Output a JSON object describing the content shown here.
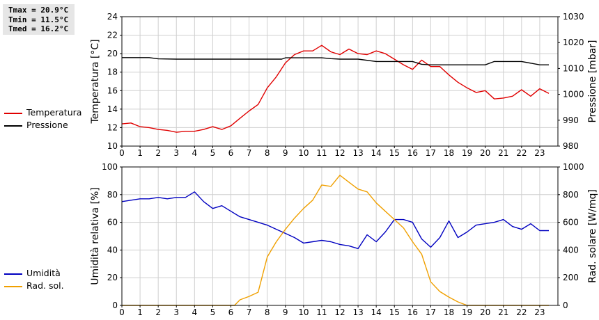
{
  "stats": {
    "tmax": "Tmax = 20.9°C",
    "tmin": "Tmin = 11.5°C",
    "tmed": "Tmed = 16.2°C"
  },
  "legend_top": [
    {
      "label": "Temperatura",
      "color": "#e00000"
    },
    {
      "label": "Pressione",
      "color": "#000000"
    }
  ],
  "legend_bottom": [
    {
      "label": "Umidità",
      "color": "#0000c0"
    },
    {
      "label": "Rad. sol.",
      "color": "#f0a000"
    }
  ],
  "chart_data": [
    {
      "type": "line",
      "ylabel_left": "Temperatura [°C]",
      "ylabel_right": "Pressione [mbar]",
      "ylim_left": [
        10,
        24
      ],
      "ylim_right": [
        980,
        1030
      ],
      "yticks_left": [
        10,
        12,
        14,
        16,
        18,
        20,
        22,
        24
      ],
      "yticks_right": [
        980,
        990,
        1000,
        1010,
        1020,
        1030
      ],
      "xlim": [
        0,
        24
      ],
      "xticks": [
        0,
        1,
        2,
        3,
        4,
        5,
        6,
        7,
        8,
        9,
        10,
        11,
        12,
        13,
        14,
        15,
        16,
        17,
        18,
        19,
        20,
        21,
        22,
        23
      ],
      "series": [
        {
          "name": "Temperatura",
          "axis": "left",
          "color": "#e00000",
          "x": [
            0,
            0.5,
            1,
            1.5,
            2,
            2.5,
            3,
            3.5,
            4,
            4.5,
            5,
            5.5,
            6,
            6.5,
            7,
            7.5,
            8,
            8.5,
            9,
            9.5,
            10,
            10.5,
            11,
            11.5,
            12,
            12.5,
            13,
            13.5,
            14,
            14.5,
            15,
            15.5,
            16,
            16.5,
            17,
            17.5,
            18,
            18.5,
            19,
            19.5,
            20,
            20.5,
            21,
            21.5,
            22,
            22.5,
            23,
            23.5
          ],
          "values": [
            12.4,
            12.5,
            12.1,
            12.0,
            11.8,
            11.7,
            11.5,
            11.6,
            11.6,
            11.8,
            12.1,
            11.8,
            12.2,
            13.0,
            13.8,
            14.5,
            16.3,
            17.5,
            19.0,
            19.9,
            20.3,
            20.3,
            20.9,
            20.2,
            19.9,
            20.5,
            20.0,
            19.9,
            20.3,
            20.0,
            19.4,
            18.8,
            18.3,
            19.3,
            18.6,
            18.6,
            17.7,
            16.9,
            16.3,
            15.8,
            16.0,
            15.1,
            15.2,
            15.4,
            16.1,
            15.4,
            16.2,
            15.7
          ]
        },
        {
          "name": "Pressione",
          "axis": "right",
          "color": "#000000",
          "x": [
            0,
            1.5,
            2,
            3,
            4,
            5,
            6,
            7,
            8,
            8.8,
            9,
            10,
            11,
            11.5,
            12,
            13,
            14,
            15,
            16,
            16.5,
            17,
            18,
            19,
            20,
            20.5,
            21,
            22,
            23,
            23.5
          ],
          "values": [
            1014.2,
            1014.2,
            1013.7,
            1013.6,
            1013.6,
            1013.6,
            1013.6,
            1013.6,
            1013.6,
            1013.6,
            1014.1,
            1014.1,
            1014.1,
            1013.8,
            1013.6,
            1013.6,
            1012.7,
            1012.7,
            1012.7,
            1011.6,
            1011.4,
            1011.4,
            1011.4,
            1011.4,
            1012.7,
            1012.7,
            1012.7,
            1011.4,
            1011.4
          ]
        }
      ]
    },
    {
      "type": "line",
      "ylabel_left": "Umidità relativa [%]",
      "ylabel_right": "Rad. solare [W/mq]",
      "ylim_left": [
        0,
        100
      ],
      "ylim_right": [
        0,
        1000
      ],
      "yticks_left": [
        0,
        20,
        40,
        60,
        80,
        100
      ],
      "yticks_right": [
        0,
        200,
        400,
        600,
        800,
        1000
      ],
      "xlim": [
        0,
        24
      ],
      "xticks": [
        0,
        1,
        2,
        3,
        4,
        5,
        6,
        7,
        8,
        9,
        10,
        11,
        12,
        13,
        14,
        15,
        16,
        17,
        18,
        19,
        20,
        21,
        22,
        23
      ],
      "series": [
        {
          "name": "Umidità",
          "axis": "left",
          "color": "#0000c0",
          "x": [
            0,
            0.5,
            1,
            1.5,
            2,
            2.5,
            3,
            3.5,
            4,
            4.5,
            5,
            5.5,
            6,
            6.5,
            7,
            7.5,
            8,
            8.5,
            9,
            9.5,
            10,
            10.5,
            11,
            11.5,
            12,
            12.5,
            13,
            13.5,
            14,
            14.5,
            15,
            15.5,
            16,
            16.5,
            17,
            17.5,
            18,
            18.5,
            19,
            19.5,
            20,
            20.5,
            21,
            21.5,
            22,
            22.5,
            23,
            23.5
          ],
          "values": [
            75,
            76,
            77,
            77,
            78,
            77,
            78,
            78,
            82,
            75,
            70,
            72,
            68,
            64,
            62,
            60,
            58,
            55,
            52,
            49,
            45,
            46,
            47,
            46,
            44,
            43,
            41,
            51,
            46,
            53,
            62,
            62,
            60,
            48,
            42,
            49,
            61,
            49,
            53,
            58,
            59,
            60,
            62,
            57,
            55,
            59,
            54,
            54
          ]
        },
        {
          "name": "Rad. sol.",
          "axis": "right",
          "color": "#f0a000",
          "x": [
            0,
            1,
            2,
            3,
            4,
            5,
            6,
            6.2,
            6.5,
            7,
            7.5,
            8,
            8.5,
            9,
            9.5,
            10,
            10.5,
            11,
            11.5,
            12,
            12.5,
            13,
            13.5,
            14,
            14.5,
            15,
            15.5,
            16,
            16.5,
            17,
            17.5,
            18,
            18.5,
            19,
            20,
            21,
            22,
            23,
            23.5
          ],
          "values": [
            0,
            0,
            0,
            0,
            0,
            0,
            0,
            0,
            40,
            65,
            95,
            350,
            460,
            550,
            630,
            700,
            760,
            870,
            860,
            940,
            890,
            840,
            820,
            740,
            680,
            620,
            560,
            460,
            370,
            170,
            100,
            60,
            25,
            0,
            0,
            0,
            0,
            0,
            0
          ]
        }
      ]
    }
  ]
}
